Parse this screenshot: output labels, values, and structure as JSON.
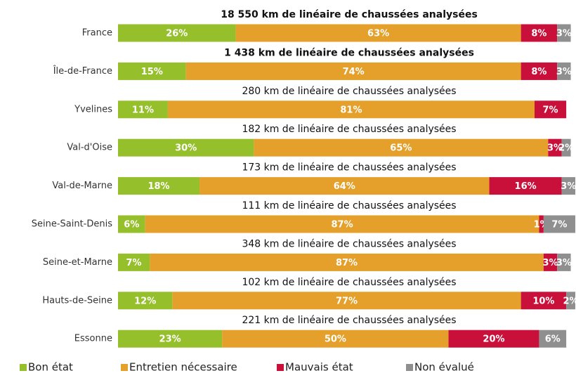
{
  "chart_data": {
    "type": "stacked-bar-horizontal",
    "categories": [
      "France",
      "Île-de-France",
      "Yvelines",
      "Val-d'Oise",
      "Val-de-Marne",
      "Seine-Saint-Denis",
      "Seine-et-Marne",
      "Hauts-de-Seine",
      "Essonne"
    ],
    "annotations": [
      "18 550 km de linéaire de chaussées analysées",
      "1 438 km de linéaire de chaussées analysées",
      "280 km de linéaire de chaussées analysées",
      "182 km de linéaire de chaussées analysées",
      "173 km de linéaire de chaussées analysées",
      "111 km de linéaire de chaussées analysées",
      "348 km de linéaire de chaussées analysées",
      "102 km de linéaire de chaussées analysées",
      "221 km de linéaire de chaussées analysées"
    ],
    "annotation_weights": [
      "bold",
      "bold",
      "normal",
      "normal",
      "normal",
      "normal",
      "normal",
      "normal",
      "normal"
    ],
    "series": [
      {
        "name": "Bon état",
        "color": "#95bf2b",
        "values": [
          26,
          15,
          11,
          30,
          18,
          6,
          7,
          12,
          23
        ],
        "value_labels": [
          "26%",
          "15%",
          "11%",
          "30%",
          "18%",
          "6%",
          "7%",
          "12%",
          "23%"
        ]
      },
      {
        "name": "Entretien nécessaire",
        "color": "#e4a02a",
        "values": [
          63,
          74,
          81,
          65,
          64,
          87,
          87,
          77,
          50
        ],
        "value_labels": [
          "63%",
          "74%",
          "81%",
          "65%",
          "64%",
          "87%",
          "87%",
          "77%",
          "50%"
        ]
      },
      {
        "name": "Mauvais état",
        "color": "#c8103a",
        "values": [
          8,
          8,
          7,
          3,
          16,
          1,
          3,
          10,
          20
        ],
        "value_labels": [
          "8%",
          "8%",
          "7%",
          "3%",
          "16%",
          "1%",
          "3%",
          "10%",
          "20%"
        ]
      },
      {
        "name": "Non évalué",
        "color": "#8f8f8f",
        "values": [
          3,
          3,
          null,
          2,
          3,
          7,
          3,
          2,
          6
        ],
        "value_labels": [
          "3%",
          "3%",
          null,
          "2%",
          "3%",
          "7%",
          "3%",
          "2%",
          "6%"
        ]
      }
    ]
  }
}
